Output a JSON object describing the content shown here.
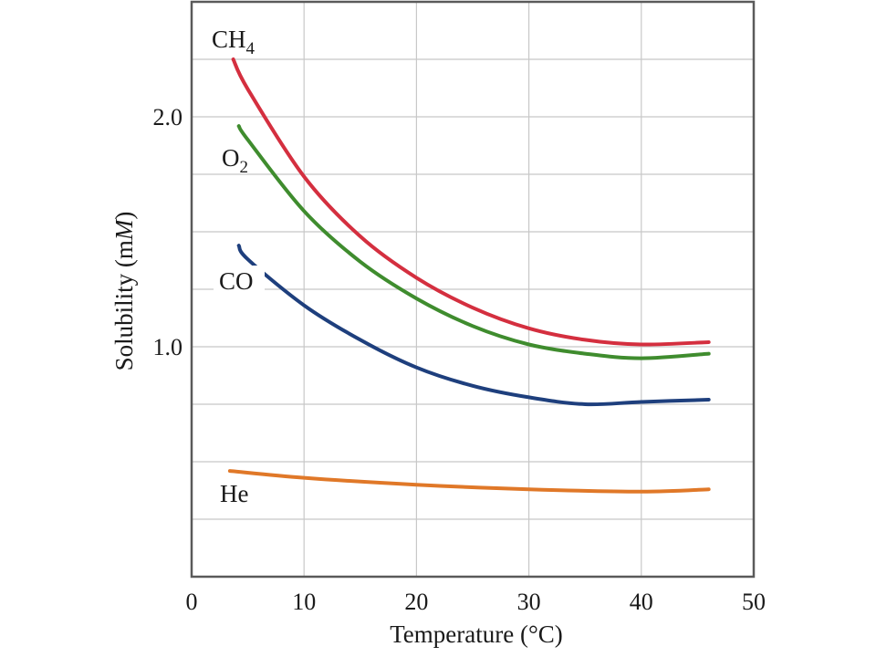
{
  "chart_data": {
    "type": "line",
    "title": "",
    "xlabel": "Temperature (°C)",
    "ylabel_parts": [
      "Solubility (m",
      "M",
      ")"
    ],
    "xlim": [
      0,
      50
    ],
    "ylim": [
      0,
      2.5
    ],
    "xticks": [
      0,
      10,
      20,
      30,
      40,
      50
    ],
    "yticks": [
      1.0,
      2.0
    ],
    "ytick_labels": [
      "1.0",
      "2.0"
    ],
    "grid": true,
    "series": [
      {
        "name": "CH4",
        "label_main": "CH",
        "label_sub": "4",
        "color": "#d42f3f",
        "x": [
          3.7,
          5,
          10,
          15,
          20,
          25,
          30,
          35,
          40,
          46
        ],
        "y": [
          2.25,
          2.12,
          1.74,
          1.48,
          1.3,
          1.17,
          1.08,
          1.03,
          1.01,
          1.02
        ]
      },
      {
        "name": "O2",
        "label_main": "O",
        "label_sub": "2",
        "color": "#3f8c2e",
        "x": [
          4.2,
          5,
          10,
          15,
          20,
          25,
          30,
          35,
          40,
          46
        ],
        "y": [
          1.96,
          1.9,
          1.59,
          1.37,
          1.21,
          1.09,
          1.01,
          0.97,
          0.95,
          0.97
        ]
      },
      {
        "name": "CO",
        "label_main": "CO",
        "label_sub": "",
        "color": "#1e3f7d",
        "x": [
          4.2,
          5,
          10,
          15,
          20,
          25,
          30,
          35,
          40,
          46
        ],
        "y": [
          1.44,
          1.38,
          1.18,
          1.03,
          0.91,
          0.83,
          0.78,
          0.75,
          0.76,
          0.77
        ]
      },
      {
        "name": "He",
        "label_main": "He",
        "label_sub": "",
        "color": "#e07828",
        "x": [
          3.4,
          10,
          20,
          30,
          40,
          46
        ],
        "y": [
          0.46,
          0.43,
          0.4,
          0.38,
          0.37,
          0.38
        ]
      }
    ]
  }
}
